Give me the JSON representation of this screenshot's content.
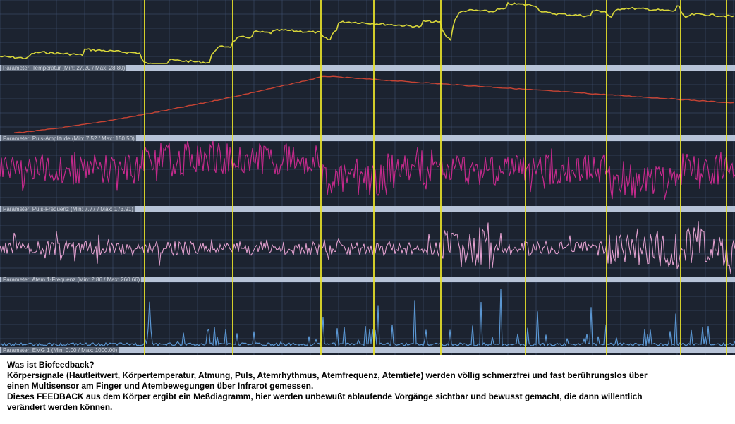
{
  "monitor": {
    "colors": {
      "background": "#1c2330",
      "grid": "#3d4e6e",
      "separator": "#b7c3d7",
      "marker": "#e6e02a"
    },
    "marker_count": 11,
    "panels": [
      {
        "key": "hautleitwert",
        "label": "",
        "color": "#d8d63a"
      },
      {
        "key": "temperatur",
        "label": "Parameter: Temperatur (Min: 27.20 / Max: 28.80)",
        "color": "#c84434"
      },
      {
        "key": "puls_amplitude",
        "label": "Parameter: Puls-Amplitude (Min: 7.52 / Max: 150.50)",
        "color": "#c42a8c"
      },
      {
        "key": "puls_frequenz",
        "label": "Parameter: Puls-Frequenz (Min: 7.77 / Max: 173.91)",
        "color": "#e2a0cf"
      },
      {
        "key": "atem_frequenz",
        "label": "Parameter: Atem 1-Frequenz (Min: 2.86 / Max: 260.66)",
        "color": "#5b97d3"
      },
      {
        "key": "emg",
        "label": "Parameter: EMG 1 (Min: 0.00 / Max: 1000.00)",
        "color": ""
      }
    ]
  },
  "caption": {
    "line1": "Was ist Biofeedback?",
    "line2": "Körpersignale (Hautleitwert, Körpertemperatur, Atmung, Puls, Atemrhythmus,  Atemfrequenz, Atemtiefe) werden völlig schmerzfrei und fast berührungslos über",
    "line3": "einen Multisensor am Finger und Atembewegungen über Infrarot gemessen.",
    "line4": "Dieses  FEEDBACK aus dem Körper ergibt ein Meßdiagramm, hier werden unbewußt ablaufende Vorgänge sichtbar und bewusst gemacht, die dann willentlich",
    "line5": "verändert werden können."
  }
}
